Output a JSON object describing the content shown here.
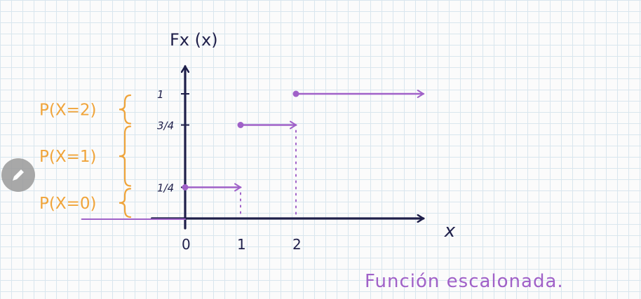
{
  "chart_data": {
    "type": "line",
    "title": "",
    "ylabel": "Fx (x)",
    "xlabel": "x",
    "x_ticks": [
      "0",
      "1",
      "2"
    ],
    "y_ticks": [
      {
        "value": 0.25,
        "label": "1/4"
      },
      {
        "value": 0.75,
        "label": "3/4"
      },
      {
        "value": 1,
        "label": "1"
      }
    ],
    "xlim": [
      -0.6,
      4.3
    ],
    "ylim": [
      0,
      1.22
    ],
    "series": [
      {
        "steps": [
          {
            "x_start": 0,
            "x_end": 1,
            "y": 0.25
          },
          {
            "x_start": 1,
            "x_end": 2,
            "y": 0.75
          },
          {
            "x_start": 2,
            "x_end": 4.3,
            "y": 1
          }
        ]
      }
    ],
    "annotations": [
      {
        "label": "P(X=2)",
        "from": 0.75,
        "to": 1
      },
      {
        "label": "P(X=1)",
        "from": 0.25,
        "to": 0.75
      },
      {
        "label": "P(X=0)",
        "from": 0,
        "to": 0.25
      }
    ],
    "caption": "Función escalonada."
  },
  "colors": {
    "axis": "#1f1f4a",
    "step": "#a061c8",
    "annotation": "#f0a43a",
    "guide": "#a061c8",
    "ticks": "#1f1f4a"
  },
  "controls": {
    "pen_icon": "pencil-icon"
  }
}
